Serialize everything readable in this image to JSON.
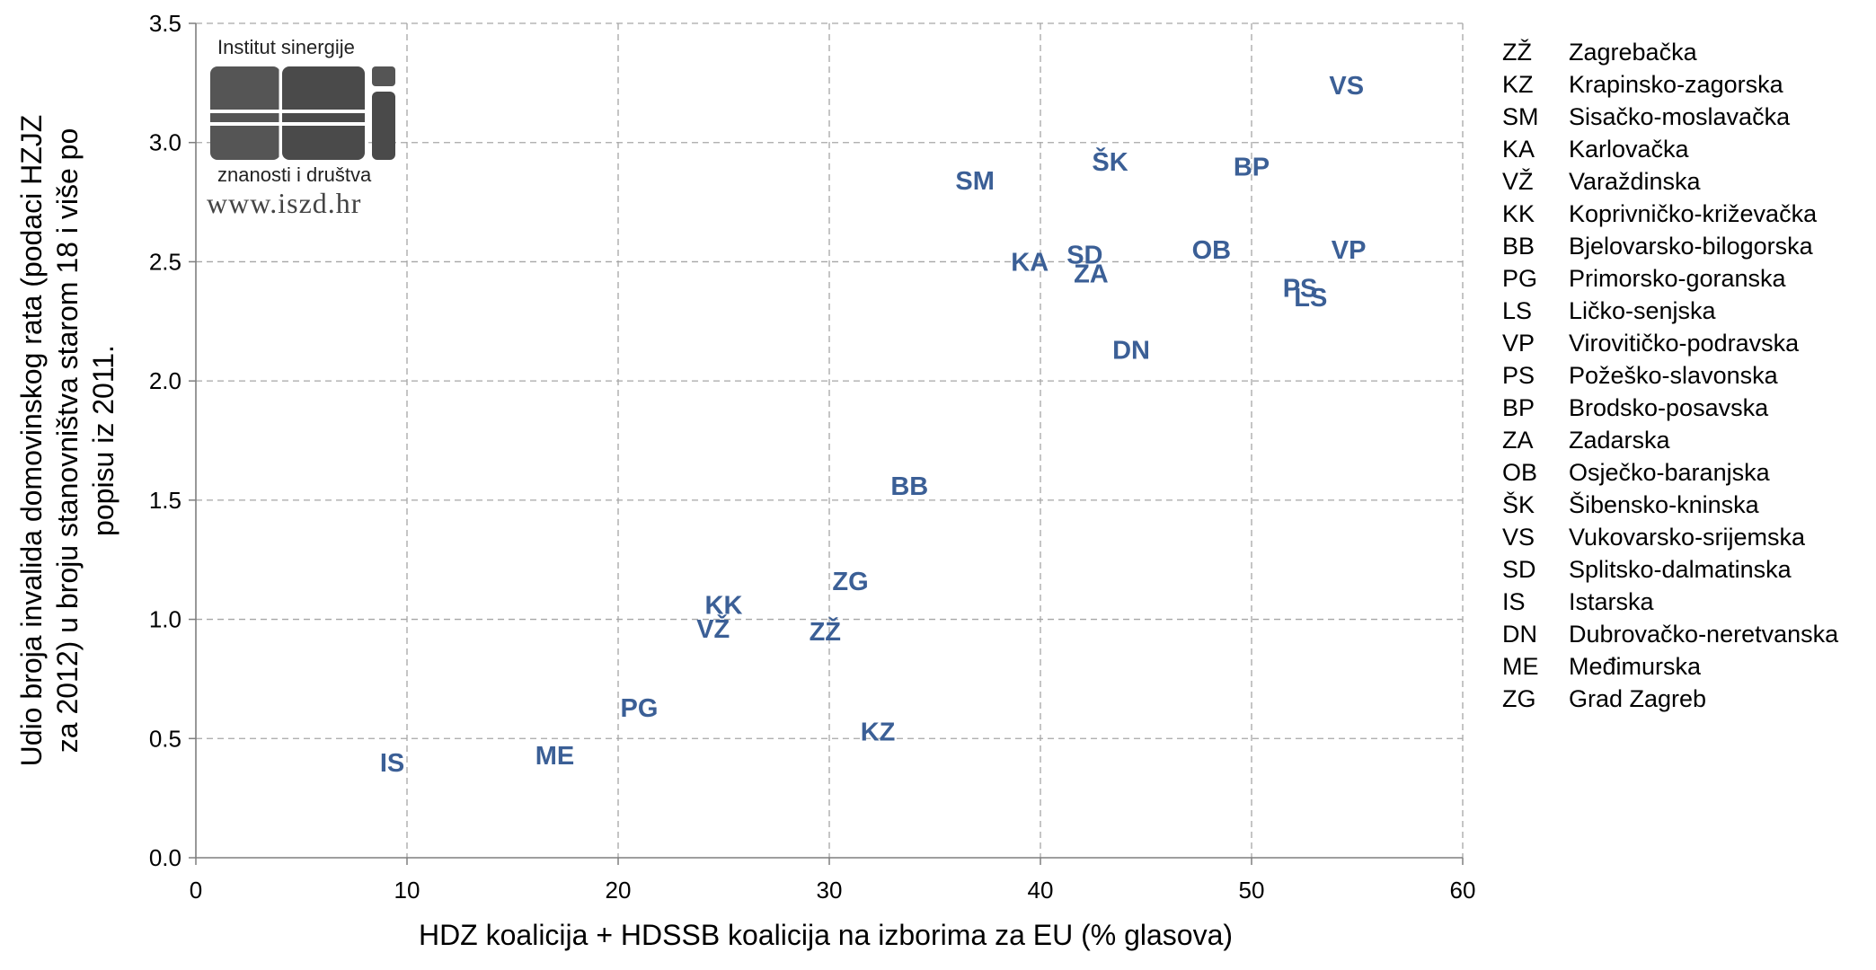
{
  "chart_data": {
    "type": "scatter",
    "title": "",
    "xlabel": "HDZ koalicija + HDSSB koalicija na izborima za EU (% glasova)",
    "ylabel_lines": [
      "Udio broja invalida domovinskog rata (podaci HZJZ",
      "za 2012) u broju stanovništva starom 18 i više po",
      "popisu iz 2011."
    ],
    "xlim": [
      0,
      60
    ],
    "ylim": [
      0,
      3.5
    ],
    "x_ticks": [
      "0",
      "10",
      "20",
      "30",
      "40",
      "50",
      "60"
    ],
    "y_ticks": [
      "0.0",
      "0.5",
      "1.0",
      "1.5",
      "2.0",
      "2.5",
      "3.0",
      "3.5"
    ],
    "grid": true,
    "points": [
      {
        "label": "ZŽ",
        "x": 29.8,
        "y": 0.95
      },
      {
        "label": "KZ",
        "x": 32.3,
        "y": 0.53
      },
      {
        "label": "SM",
        "x": 36.9,
        "y": 2.84
      },
      {
        "label": "KA",
        "x": 39.5,
        "y": 2.5
      },
      {
        "label": "VŽ",
        "x": 24.5,
        "y": 0.96
      },
      {
        "label": "KK",
        "x": 25.0,
        "y": 1.06
      },
      {
        "label": "BB",
        "x": 33.8,
        "y": 1.56
      },
      {
        "label": "PG",
        "x": 21.0,
        "y": 0.63
      },
      {
        "label": "LS",
        "x": 52.8,
        "y": 2.35
      },
      {
        "label": "VP",
        "x": 54.6,
        "y": 2.55
      },
      {
        "label": "PS",
        "x": 52.3,
        "y": 2.39
      },
      {
        "label": "BP",
        "x": 50.0,
        "y": 2.9
      },
      {
        "label": "ZA",
        "x": 42.4,
        "y": 2.45
      },
      {
        "label": "OB",
        "x": 48.1,
        "y": 2.55
      },
      {
        "label": "ŠK",
        "x": 43.3,
        "y": 2.92
      },
      {
        "label": "VS",
        "x": 54.5,
        "y": 3.24
      },
      {
        "label": "SD",
        "x": 42.1,
        "y": 2.53
      },
      {
        "label": "IS",
        "x": 9.3,
        "y": 0.4
      },
      {
        "label": "DN",
        "x": 44.3,
        "y": 2.13
      },
      {
        "label": "ME",
        "x": 17.0,
        "y": 0.43
      },
      {
        "label": "ZG",
        "x": 31.0,
        "y": 1.16
      }
    ],
    "legend": [
      {
        "code": "ZŽ",
        "name": "Zagrebačka"
      },
      {
        "code": "KZ",
        "name": "Krapinsko-zagorska"
      },
      {
        "code": "SM",
        "name": "Sisačko-moslavačka"
      },
      {
        "code": "KA",
        "name": "Karlovačka"
      },
      {
        "code": "VŽ",
        "name": "Varaždinska"
      },
      {
        "code": "KK",
        "name": "Koprivničko-križevačka"
      },
      {
        "code": "BB",
        "name": "Bjelovarsko-bilogorska"
      },
      {
        "code": "PG",
        "name": "Primorsko-goranska"
      },
      {
        "code": "LS",
        "name": "Ličko-senjska"
      },
      {
        "code": "VP",
        "name": "Virovitičko-podravska"
      },
      {
        "code": "PS",
        "name": "Požeško-slavonska"
      },
      {
        "code": "BP",
        "name": "Brodsko-posavska"
      },
      {
        "code": "ZA",
        "name": "Zadarska"
      },
      {
        "code": "OB",
        "name": "Osječko-baranjska"
      },
      {
        "code": "ŠK",
        "name": "Šibensko-kninska"
      },
      {
        "code": "VS",
        "name": "Vukovarsko-srijemska"
      },
      {
        "code": "SD",
        "name": "Splitsko-dalmatinska"
      },
      {
        "code": "IS",
        "name": "Istarska"
      },
      {
        "code": "DN",
        "name": "Dubrovačko-neretvanska"
      },
      {
        "code": "ME",
        "name": "Međimurska"
      },
      {
        "code": "ZG",
        "name": "Grad Zagreb"
      }
    ],
    "legend_position": "right",
    "label_color": "#3b5f96"
  },
  "logo": {
    "top_text": "Institut sinergije",
    "bottom_text": "znanosti i društva",
    "url": "www.iszd.hr"
  }
}
